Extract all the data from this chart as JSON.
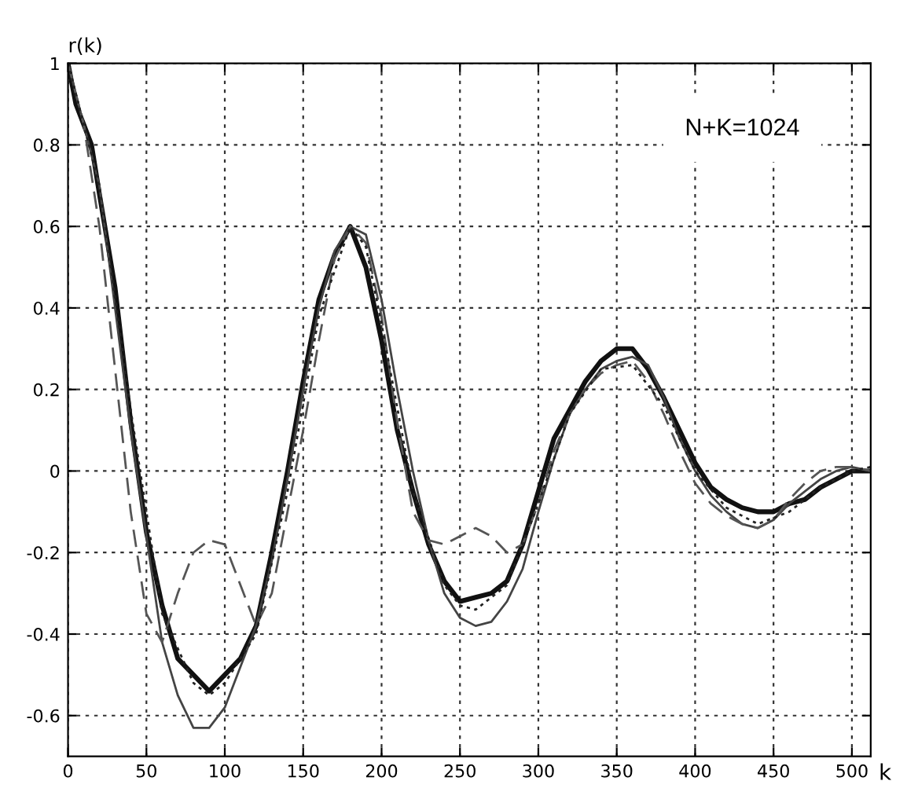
{
  "chart_data": {
    "type": "line",
    "xlabel": "k",
    "ylabel": "r(k)",
    "annotations": [
      "N+K=1024"
    ],
    "xlim": [
      0,
      512
    ],
    "ylim": [
      -0.7,
      1
    ],
    "xticks": [
      0,
      50,
      100,
      150,
      200,
      250,
      300,
      350,
      400,
      450,
      500
    ],
    "yticks": [
      -0.6,
      -0.4,
      -0.2,
      0,
      0.2,
      0.4,
      0.6,
      0.8,
      1
    ],
    "grid": true,
    "marker": "none",
    "series": [
      {
        "color": "#111111",
        "line_style": "solid",
        "x": [
          0,
          5,
          10,
          15,
          20,
          30,
          40,
          50,
          60,
          70,
          80,
          90,
          100,
          110,
          120,
          130,
          140,
          150,
          160,
          170,
          180,
          190,
          200,
          210,
          220,
          230,
          240,
          250,
          260,
          270,
          280,
          290,
          300,
          310,
          320,
          330,
          340,
          350,
          360,
          370,
          380,
          390,
          400,
          410,
          420,
          430,
          440,
          450,
          460,
          470,
          480,
          490,
          500,
          512
        ],
        "values": [
          1,
          0.9,
          0.85,
          0.8,
          0.68,
          0.45,
          0.12,
          -0.15,
          -0.33,
          -0.46,
          -0.5,
          -0.54,
          -0.5,
          -0.46,
          -0.38,
          -0.2,
          0.0,
          0.22,
          0.42,
          0.53,
          0.6,
          0.5,
          0.32,
          0.1,
          -0.05,
          -0.18,
          -0.27,
          -0.32,
          -0.31,
          -0.3,
          -0.27,
          -0.18,
          -0.05,
          0.08,
          0.15,
          0.22,
          0.27,
          0.3,
          0.3,
          0.25,
          0.18,
          0.1,
          0.02,
          -0.04,
          -0.07,
          -0.09,
          -0.1,
          -0.1,
          -0.08,
          -0.07,
          -0.04,
          -0.02,
          0.0,
          0.0
        ]
      },
      {
        "color": "#444444",
        "line_style": "solid",
        "x": [
          0,
          20,
          40,
          60,
          70,
          80,
          90,
          100,
          110,
          120,
          130,
          140,
          150,
          160,
          170,
          180,
          190,
          200,
          210,
          220,
          230,
          240,
          250,
          260,
          270,
          280,
          290,
          300,
          310,
          320,
          330,
          340,
          350,
          360,
          370,
          380,
          390,
          400,
          410,
          420,
          430,
          440,
          450,
          460,
          470,
          480,
          490,
          500,
          512
        ],
        "values": [
          1,
          0.7,
          0.1,
          -0.42,
          -0.55,
          -0.63,
          -0.63,
          -0.58,
          -0.48,
          -0.38,
          -0.22,
          -0.02,
          0.2,
          0.4,
          0.54,
          0.6,
          0.58,
          0.42,
          0.2,
          0.0,
          -0.17,
          -0.3,
          -0.36,
          -0.38,
          -0.37,
          -0.32,
          -0.24,
          -0.1,
          0.03,
          0.14,
          0.2,
          0.25,
          0.27,
          0.28,
          0.26,
          0.18,
          0.08,
          0.0,
          -0.06,
          -0.1,
          -0.13,
          -0.14,
          -0.12,
          -0.08,
          -0.05,
          -0.02,
          0.0,
          0.01,
          0.0
        ]
      },
      {
        "color": "#555555",
        "line_style": "dashed",
        "x": [
          0,
          10,
          20,
          30,
          40,
          50,
          60,
          70,
          80,
          90,
          100,
          110,
          120,
          130,
          140,
          150,
          160,
          170,
          180,
          190,
          200,
          210,
          220,
          230,
          240,
          250,
          260,
          270,
          280,
          290,
          300,
          310,
          320,
          330,
          340,
          350,
          360,
          370,
          380,
          390,
          400,
          410,
          420,
          430,
          440,
          450,
          460,
          470,
          480,
          490,
          500,
          512
        ],
        "values": [
          1,
          0.85,
          0.6,
          0.25,
          -0.1,
          -0.35,
          -0.42,
          -0.3,
          -0.2,
          -0.17,
          -0.18,
          -0.28,
          -0.38,
          -0.3,
          -0.1,
          0.1,
          0.32,
          0.52,
          0.6,
          0.56,
          0.38,
          0.12,
          -0.1,
          -0.17,
          -0.18,
          -0.16,
          -0.14,
          -0.16,
          -0.2,
          -0.18,
          -0.08,
          0.05,
          0.14,
          0.2,
          0.24,
          0.26,
          0.27,
          0.22,
          0.14,
          0.05,
          -0.03,
          -0.08,
          -0.11,
          -0.13,
          -0.14,
          -0.12,
          -0.07,
          -0.03,
          0.0,
          0.01,
          0.01,
          0.0
        ]
      },
      {
        "color": "#222222",
        "line_style": "dotted",
        "x": [
          0,
          20,
          40,
          60,
          80,
          90,
          100,
          120,
          140,
          160,
          180,
          190,
          200,
          220,
          240,
          250,
          260,
          280,
          300,
          320,
          340,
          360,
          380,
          400,
          420,
          440,
          460,
          480,
          500,
          512
        ],
        "values": [
          1,
          0.7,
          0.15,
          -0.35,
          -0.52,
          -0.55,
          -0.52,
          -0.4,
          -0.05,
          0.38,
          0.6,
          0.55,
          0.36,
          -0.05,
          -0.28,
          -0.33,
          -0.34,
          -0.28,
          -0.08,
          0.14,
          0.25,
          0.26,
          0.16,
          0.0,
          -0.09,
          -0.13,
          -0.1,
          -0.04,
          0.0,
          0.01
        ]
      }
    ]
  }
}
